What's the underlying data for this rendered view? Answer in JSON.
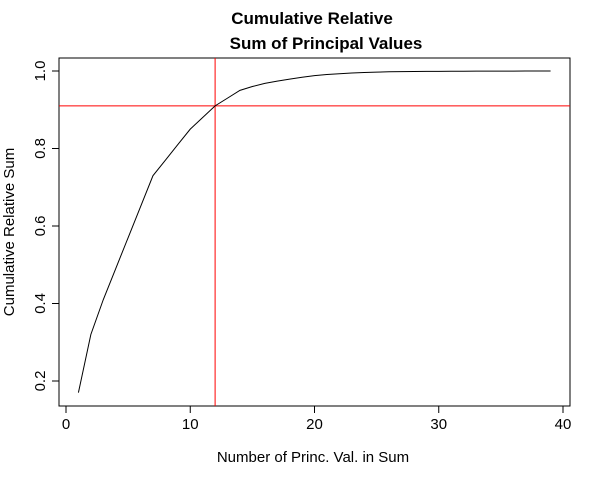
{
  "chart_data": {
    "type": "line",
    "title_line1": "Cumulative Relative",
    "title_line2": "Sum of Principal Values",
    "xlabel": "Number of Princ. Val. in Sum",
    "ylabel": "Cumulative Relative Sum",
    "xlim": [
      0,
      40
    ],
    "ylim": [
      0.14,
      1.04
    ],
    "x_ticks": [
      {
        "value": 0,
        "label": "0"
      },
      {
        "value": 10,
        "label": "10"
      },
      {
        "value": 20,
        "label": "20"
      },
      {
        "value": 30,
        "label": "30"
      },
      {
        "value": 40,
        "label": "40"
      }
    ],
    "y_ticks": [
      {
        "value": 0.2,
        "label": "0.2"
      },
      {
        "value": 0.4,
        "label": "0.4"
      },
      {
        "value": 0.6,
        "label": "0.6"
      },
      {
        "value": 0.8,
        "label": "0.8"
      },
      {
        "value": 1.0,
        "label": "1.0"
      }
    ],
    "grid": false,
    "series": [
      {
        "color": "#000000",
        "x": [
          1,
          2,
          3,
          4,
          5,
          6,
          7,
          8,
          9,
          10,
          11,
          12,
          13,
          14,
          15,
          16,
          17,
          18,
          19,
          20,
          21,
          22,
          23,
          24,
          25,
          26,
          27,
          28,
          29,
          30,
          31,
          32,
          33,
          34,
          35,
          36,
          37,
          38,
          39
        ],
        "values": [
          0.17,
          0.32,
          0.41,
          0.49,
          0.57,
          0.65,
          0.73,
          0.77,
          0.81,
          0.85,
          0.88,
          0.91,
          0.93,
          0.95,
          0.96,
          0.968,
          0.974,
          0.979,
          0.984,
          0.988,
          0.991,
          0.993,
          0.995,
          0.996,
          0.997,
          0.998,
          0.9983,
          0.9986,
          0.9989,
          0.9991,
          0.9993,
          0.9995,
          0.9996,
          0.9997,
          0.9998,
          0.9998,
          0.9999,
          0.9999,
          1.0
        ]
      }
    ],
    "reference_lines": [
      {
        "orientation": "vertical",
        "value": 12,
        "color": "#ff0000"
      },
      {
        "orientation": "horizontal",
        "value": 0.91,
        "color": "#ff0000"
      }
    ]
  }
}
